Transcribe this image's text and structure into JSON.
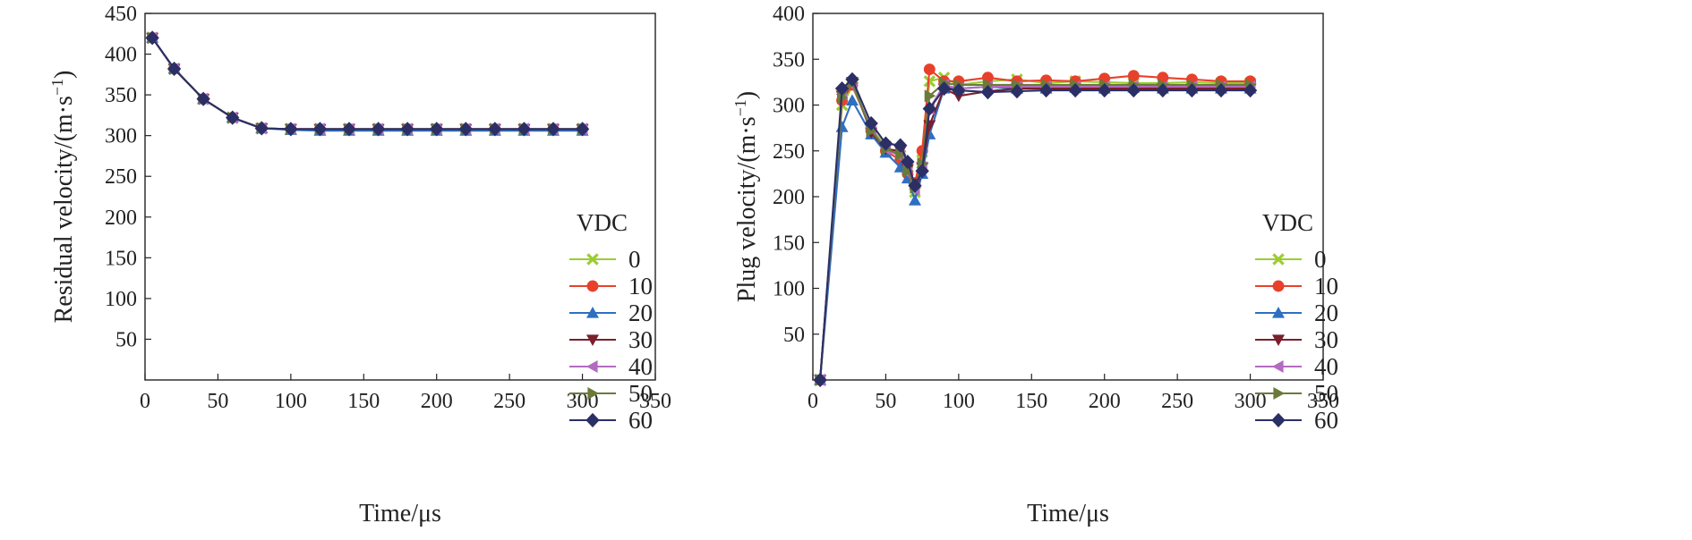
{
  "chart_data": [
    {
      "type": "line",
      "xlabel": "Time/μs",
      "ylabel": "Residual velocity/(m·s",
      "ylabel_sup": "−1",
      "ylabel_close": ")",
      "xlim": [
        0,
        350
      ],
      "ylim": [
        0,
        450
      ],
      "xticks": [
        0,
        50,
        100,
        150,
        200,
        250,
        300,
        350
      ],
      "yticks": [
        50,
        100,
        150,
        200,
        250,
        300,
        350,
        400,
        450
      ],
      "grid": false,
      "legend": {
        "title": "VDC",
        "placement": "right-middle"
      },
      "x": [
        5,
        20,
        40,
        60,
        80,
        100,
        120,
        140,
        160,
        180,
        200,
        220,
        240,
        260,
        280,
        300
      ],
      "series": [
        {
          "name": "0",
          "color": "#9acd32",
          "marker": "x",
          "values": [
            420,
            382,
            345,
            322,
            309,
            308,
            308,
            308,
            308,
            308,
            308,
            308,
            308,
            308,
            308,
            308
          ]
        },
        {
          "name": "10",
          "color": "#e8412b",
          "marker": "circle",
          "values": [
            420,
            382,
            345,
            322,
            309,
            308,
            308,
            308,
            308,
            308,
            308,
            308,
            308,
            308,
            308,
            308
          ]
        },
        {
          "name": "20",
          "color": "#2f6fc0",
          "marker": "triangle-up",
          "values": [
            420,
            382,
            345,
            322,
            309,
            307,
            306,
            306,
            306,
            306,
            306,
            306,
            306,
            306,
            306,
            306
          ]
        },
        {
          "name": "30",
          "color": "#7a1f2b",
          "marker": "triangle-down",
          "values": [
            420,
            382,
            345,
            322,
            309,
            308,
            308,
            308,
            308,
            308,
            308,
            308,
            308,
            308,
            308,
            308
          ]
        },
        {
          "name": "40",
          "color": "#b36bc0",
          "marker": "triangle-left",
          "values": [
            420,
            382,
            345,
            322,
            309,
            308,
            308,
            308,
            308,
            308,
            308,
            308,
            308,
            308,
            308,
            308
          ]
        },
        {
          "name": "50",
          "color": "#6b7a3a",
          "marker": "triangle-right",
          "values": [
            420,
            382,
            345,
            322,
            309,
            308,
            308,
            308,
            308,
            308,
            308,
            308,
            308,
            308,
            308,
            308
          ]
        },
        {
          "name": "60",
          "color": "#2b2f66",
          "marker": "diamond",
          "values": [
            420,
            382,
            345,
            322,
            309,
            308,
            308,
            308,
            308,
            308,
            308,
            308,
            308,
            308,
            308,
            308
          ]
        }
      ]
    },
    {
      "type": "line",
      "xlabel": "Time/μs",
      "ylabel": "Plug velocity/(m·s",
      "ylabel_sup": "−1",
      "ylabel_close": ")",
      "xlim": [
        0,
        350
      ],
      "ylim": [
        0,
        400
      ],
      "xticks": [
        0,
        50,
        100,
        150,
        200,
        250,
        300,
        350
      ],
      "yticks": [
        50,
        100,
        150,
        200,
        250,
        300,
        350,
        400
      ],
      "grid": false,
      "legend": {
        "title": "VDC",
        "placement": "right-middle"
      },
      "x": [
        5,
        20,
        27,
        40,
        50,
        60,
        65,
        70,
        75,
        80,
        90,
        100,
        120,
        140,
        160,
        180,
        200,
        220,
        240,
        260,
        280,
        300
      ],
      "series": [
        {
          "name": "0",
          "color": "#9acd32",
          "marker": "x",
          "values": [
            0,
            300,
            320,
            275,
            255,
            245,
            228,
            205,
            240,
            326,
            330,
            322,
            326,
            328,
            324,
            326,
            325,
            324,
            324,
            325,
            324,
            324
          ]
        },
        {
          "name": "10",
          "color": "#e8412b",
          "marker": "circle",
          "values": [
            0,
            305,
            322,
            272,
            250,
            240,
            225,
            215,
            250,
            339,
            326,
            326,
            330,
            326,
            327,
            326,
            329,
            332,
            330,
            328,
            326,
            326
          ]
        },
        {
          "name": "20",
          "color": "#2f6fc0",
          "marker": "triangle-up",
          "values": [
            0,
            276,
            305,
            268,
            248,
            232,
            220,
            196,
            225,
            268,
            318,
            318,
            320,
            318,
            318,
            319,
            318,
            319,
            318,
            318,
            318,
            318
          ]
        },
        {
          "name": "30",
          "color": "#7a1f2b",
          "marker": "triangle-down",
          "values": [
            0,
            310,
            325,
            270,
            252,
            250,
            230,
            214,
            232,
            278,
            318,
            310,
            315,
            318,
            318,
            318,
            318,
            318,
            318,
            318,
            318,
            318
          ]
        },
        {
          "name": "40",
          "color": "#b36bc0",
          "marker": "triangle-left",
          "values": [
            0,
            312,
            322,
            274,
            252,
            244,
            226,
            208,
            232,
            296,
            322,
            318,
            320,
            320,
            320,
            320,
            320,
            320,
            320,
            320,
            320,
            320
          ]
        },
        {
          "name": "50",
          "color": "#6b7a3a",
          "marker": "triangle-right",
          "values": [
            0,
            308,
            324,
            272,
            252,
            246,
            228,
            210,
            236,
            310,
            324,
            322,
            322,
            322,
            322,
            322,
            322,
            322,
            322,
            322,
            322,
            322
          ]
        },
        {
          "name": "60",
          "color": "#2b2f66",
          "marker": "diamond",
          "values": [
            0,
            318,
            328,
            280,
            258,
            256,
            238,
            212,
            228,
            296,
            318,
            316,
            314,
            315,
            316,
            316,
            316,
            316,
            316,
            316,
            316,
            316
          ]
        }
      ]
    }
  ]
}
